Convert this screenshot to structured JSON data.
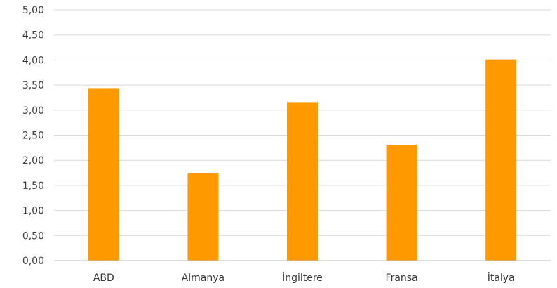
{
  "chart_data": {
    "type": "bar",
    "categories": [
      "ABD",
      "Almanya",
      "İngiltere",
      "Fransa",
      "İtalya"
    ],
    "values": [
      3.44,
      1.75,
      3.16,
      2.31,
      4.01
    ],
    "yticks": [
      "0,00",
      "0,50",
      "1,00",
      "1,50",
      "2,00",
      "2,50",
      "3,00",
      "3,50",
      "4,00",
      "4,50",
      "5,00"
    ],
    "ylim": [
      0,
      5
    ],
    "title": "",
    "xlabel": "",
    "ylabel": "",
    "grid": true,
    "legend": "none",
    "bar_color": "#FF9900",
    "grid_color": "#D9D9D9",
    "axis_color": "#BFBFBF"
  }
}
